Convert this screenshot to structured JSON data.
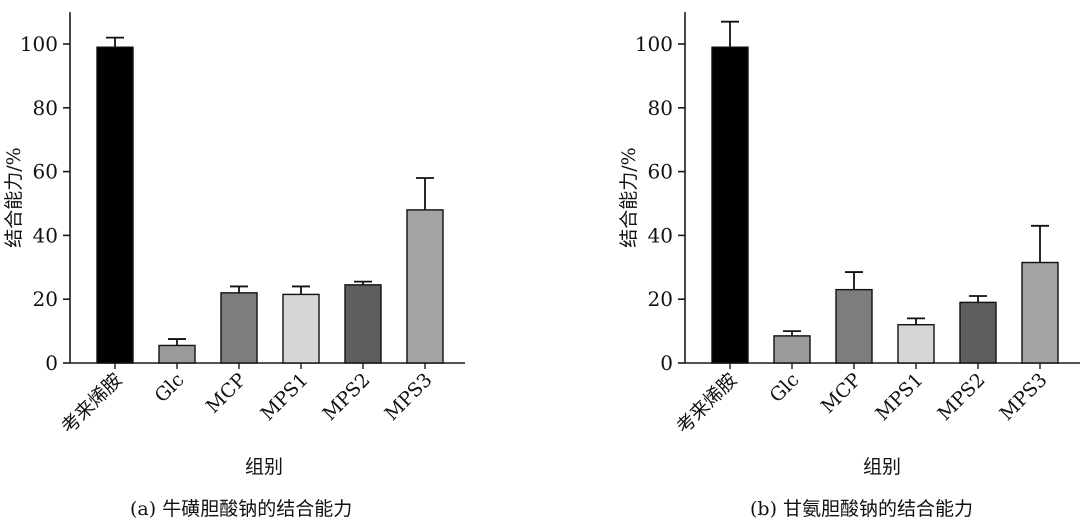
{
  "chart_data": [
    {
      "type": "bar",
      "title": "(a) 牛磺胆酸钠的结合能力",
      "xlabel": "组别",
      "ylabel": "结合能力/%",
      "ylim": [
        0,
        110
      ],
      "yticks": [
        0,
        20,
        40,
        60,
        80,
        100
      ],
      "categories": [
        "考来烯胺",
        "Glc",
        "MCP",
        "MPS1",
        "MPS2",
        "MPS3"
      ],
      "values": [
        99,
        5.5,
        22,
        21.5,
        24.5,
        48
      ],
      "errors": [
        3,
        2,
        2,
        2.5,
        1,
        10
      ],
      "colors": [
        "#000000",
        "#9a9a9a",
        "#7d7d7d",
        "#d6d6d6",
        "#5e5e5e",
        "#a3a3a3"
      ],
      "grid": false
    },
    {
      "type": "bar",
      "title": "(b) 甘氨胆酸钠的结合能力",
      "xlabel": "组别",
      "ylabel": "结合能力/%",
      "ylim": [
        0,
        110
      ],
      "yticks": [
        0,
        20,
        40,
        60,
        80,
        100
      ],
      "categories": [
        "考来烯胺",
        "Glc",
        "MCP",
        "MPS1",
        "MPS2",
        "MPS3"
      ],
      "values": [
        99,
        8.5,
        23,
        12,
        19,
        31.5
      ],
      "errors": [
        8,
        1.5,
        5.5,
        2,
        2,
        11.5
      ],
      "colors": [
        "#000000",
        "#9a9a9a",
        "#7d7d7d",
        "#d6d6d6",
        "#5e5e5e",
        "#a3a3a3"
      ],
      "grid": false
    }
  ]
}
